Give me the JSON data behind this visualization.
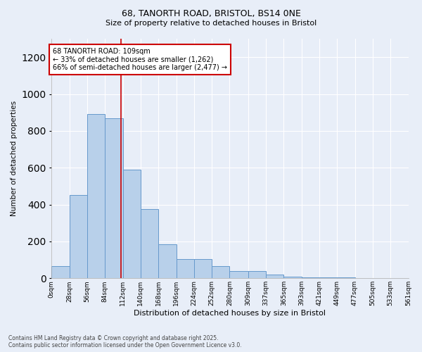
{
  "title1": "68, TANORTH ROAD, BRISTOL, BS14 0NE",
  "title2": "Size of property relative to detached houses in Bristol",
  "xlabel": "Distribution of detached houses by size in Bristol",
  "ylabel": "Number of detached properties",
  "annotation_text": "68 TANORTH ROAD: 109sqm\n← 33% of detached houses are smaller (1,262)\n66% of semi-detached houses are larger (2,477) →",
  "property_size": 109,
  "bin_edges": [
    0,
    28,
    56,
    84,
    112,
    140,
    168,
    196,
    224,
    252,
    280,
    309,
    337,
    365,
    393,
    421,
    449,
    477,
    505,
    533,
    561
  ],
  "bar_heights": [
    65,
    450,
    890,
    870,
    590,
    375,
    185,
    105,
    105,
    65,
    40,
    40,
    20,
    10,
    5,
    5,
    5,
    0,
    0,
    0
  ],
  "bar_color": "#b8d0ea",
  "bar_edge_color": "#6699cc",
  "line_color": "#cc0000",
  "background_color": "#e8eef8",
  "grid_color": "#ffffff",
  "fig_background": "#e8eef8",
  "annotation_box_color": "#cc0000",
  "ylim": [
    0,
    1300
  ],
  "yticks": [
    0,
    200,
    400,
    600,
    800,
    1000,
    1200
  ],
  "footnote": "Contains HM Land Registry data © Crown copyright and database right 2025.\nContains public sector information licensed under the Open Government Licence v3.0."
}
